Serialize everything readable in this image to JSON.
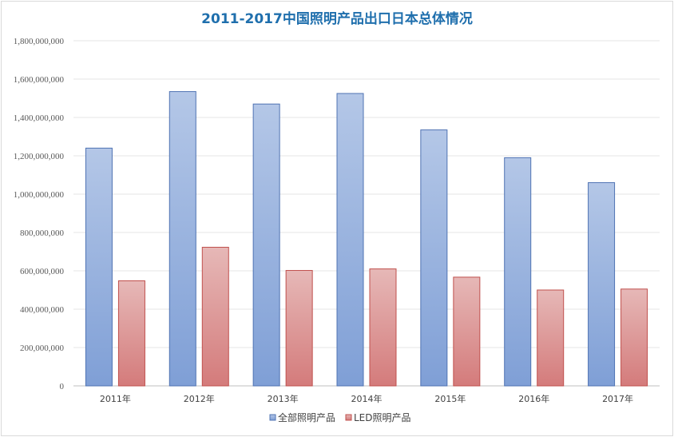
{
  "chart_data": {
    "type": "bar",
    "title": "2011-2017中国照明产品出口日本总体情况",
    "categories": [
      "2011年",
      "2012年",
      "2013年",
      "2014年",
      "2015年",
      "2016年",
      "2017年"
    ],
    "series": [
      {
        "name": "全部照明产品",
        "color": "#8faadc",
        "values": [
          1240000000,
          1535000000,
          1470000000,
          1525000000,
          1335000000,
          1190000000,
          1060000000
        ]
      },
      {
        "name": "LED照明产品",
        "color": "#d98c8c",
        "values": [
          548000000,
          723000000,
          602000000,
          610000000,
          567000000,
          500000000,
          505000000
        ]
      }
    ],
    "ylim": [
      0,
      1800000000
    ],
    "yticks": [
      "0",
      "200,000,000",
      "400,000,000",
      "600,000,000",
      "800,000,000",
      "1,000,000,000",
      "1,200,000,000",
      "1,400,000,000",
      "1,600,000,000",
      "1,800,000,000"
    ],
    "xlabel": "",
    "ylabel": "",
    "grid": true,
    "legend": "bottom"
  }
}
